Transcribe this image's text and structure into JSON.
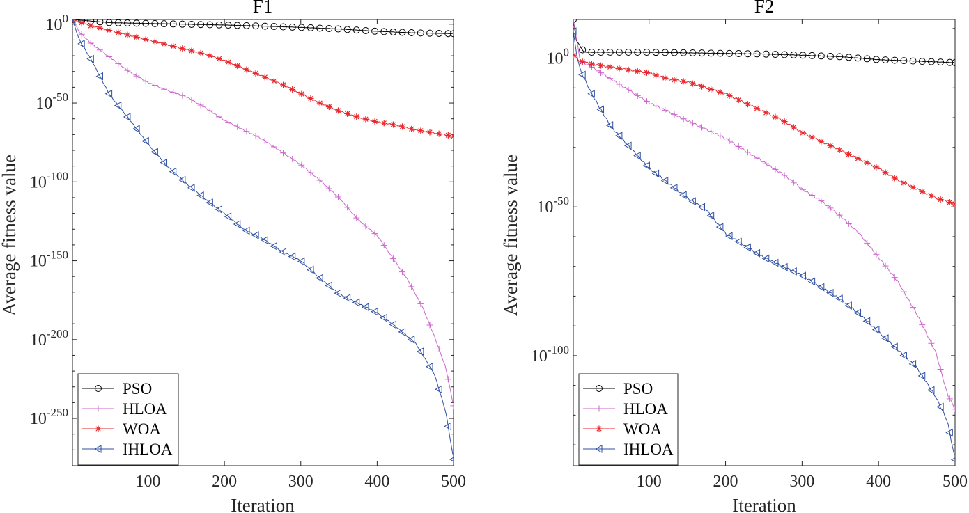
{
  "chart_data": [
    {
      "type": "line",
      "title": "F1",
      "xlabel": "Iteration",
      "ylabel": "Average fitness value",
      "yscale": "log",
      "xlim": [
        1,
        500
      ],
      "ylim_exp": [
        -280,
        3
      ],
      "xticks": [
        100,
        200,
        300,
        400,
        500
      ],
      "yticks": [
        {
          "base": "10",
          "exp": "0",
          "value": 0
        },
        {
          "base": "10",
          "exp": "-50",
          "value": -50
        },
        {
          "base": "10",
          "exp": "-100",
          "value": -100
        },
        {
          "base": "10",
          "exp": "-150",
          "value": -150
        },
        {
          "base": "10",
          "exp": "-200",
          "value": -200
        },
        {
          "base": "10",
          "exp": "-250",
          "value": -250
        }
      ],
      "legend_position": "bottom-left",
      "series": [
        {
          "name": "PSO",
          "color": "#000000",
          "marker": "circle",
          "x": [
            1,
            50,
            100,
            150,
            200,
            250,
            300,
            350,
            400,
            450,
            500
          ],
          "log10_y": [
            3,
            1,
            0.5,
            0,
            -0.5,
            -1.2,
            -2,
            -3,
            -4.5,
            -5.5,
            -6
          ]
        },
        {
          "name": "HLOA",
          "color": "#cc66cc",
          "marker": "plus",
          "x": [
            1,
            10,
            25,
            50,
            75,
            100,
            125,
            150,
            175,
            200,
            225,
            250,
            275,
            300,
            325,
            350,
            375,
            400,
            420,
            440,
            460,
            475,
            490,
            500
          ],
          "log10_y": [
            3,
            -5,
            -12,
            -21,
            -30,
            -37,
            -42,
            -46,
            -53,
            -61,
            -67,
            -73,
            -81,
            -89,
            -99,
            -110,
            -124,
            -134,
            -148,
            -162,
            -180,
            -198,
            -218,
            -242
          ]
        },
        {
          "name": "WOA",
          "color": "#e8262b",
          "marker": "asterisk",
          "x": [
            1,
            25,
            50,
            75,
            100,
            125,
            150,
            175,
            200,
            225,
            250,
            275,
            300,
            325,
            350,
            375,
            400,
            425,
            450,
            475,
            500
          ],
          "log10_y": [
            3,
            -1,
            -4,
            -7,
            -10,
            -13,
            -16,
            -19,
            -23,
            -28,
            -33,
            -38,
            -44,
            -50,
            -55,
            -59,
            -62,
            -64,
            -67,
            -69,
            -71
          ]
        },
        {
          "name": "IHLOA",
          "color": "#2e4fa1",
          "marker": "triangle-left",
          "x": [
            1,
            10,
            25,
            50,
            75,
            100,
            125,
            150,
            175,
            200,
            225,
            250,
            275,
            300,
            325,
            350,
            375,
            400,
            425,
            450,
            475,
            490,
            500
          ],
          "log10_y": [
            3,
            -10,
            -22,
            -45,
            -60,
            -76,
            -90,
            -101,
            -111,
            -120,
            -130,
            -136,
            -144,
            -150,
            -161,
            -171,
            -177,
            -183,
            -192,
            -202,
            -222,
            -246,
            -276
          ]
        }
      ]
    },
    {
      "type": "line",
      "title": "F2",
      "xlabel": "Iteration",
      "ylabel": "Average fitness value",
      "yscale": "log",
      "xlim": [
        1,
        500
      ],
      "ylim_exp": [
        -137,
        13
      ],
      "xticks": [
        100,
        200,
        300,
        400,
        500
      ],
      "yticks": [
        {
          "base": "10",
          "exp": "0",
          "value": 0
        },
        {
          "base": "10",
          "exp": "-50",
          "value": -50
        },
        {
          "base": "10",
          "exp": "-100",
          "value": -100
        }
      ],
      "legend_position": "bottom-left",
      "series": [
        {
          "name": "PSO",
          "color": "#000000",
          "marker": "circle",
          "x": [
            1,
            5,
            15,
            50,
            100,
            150,
            200,
            250,
            300,
            350,
            400,
            450,
            500
          ],
          "log10_y": [
            13,
            6,
            2,
            2,
            2,
            1.8,
            1.6,
            1.4,
            1,
            0.5,
            -0.5,
            -1,
            -1.5
          ]
        },
        {
          "name": "HLOA",
          "color": "#cc66cc",
          "marker": "plus",
          "x": [
            1,
            10,
            25,
            50,
            75,
            100,
            125,
            150,
            175,
            200,
            225,
            250,
            275,
            300,
            325,
            350,
            375,
            400,
            425,
            450,
            475,
            490,
            500
          ],
          "log10_y": [
            13,
            -1,
            -3,
            -7,
            -11,
            -15,
            -18,
            -21,
            -24,
            -27,
            -31,
            -35,
            -39,
            -44,
            -48,
            -53,
            -59,
            -67,
            -75,
            -86,
            -99,
            -113,
            -118
          ]
        },
        {
          "name": "WOA",
          "color": "#e8262b",
          "marker": "asterisk",
          "x": [
            1,
            5,
            10,
            25,
            50,
            75,
            100,
            125,
            150,
            175,
            200,
            225,
            250,
            275,
            300,
            325,
            350,
            375,
            400,
            425,
            450,
            475,
            500
          ],
          "log10_y": [
            1,
            0,
            -1,
            -2,
            -3,
            -4,
            -5,
            -7,
            -8,
            -10,
            -12,
            -15,
            -18,
            -21,
            -25,
            -28,
            -31,
            -34,
            -37,
            -41,
            -44,
            -47,
            -49
          ]
        },
        {
          "name": "IHLOA",
          "color": "#2e4fa1",
          "marker": "triangle-left",
          "x": [
            1,
            5,
            10,
            25,
            50,
            75,
            100,
            125,
            150,
            175,
            200,
            225,
            250,
            275,
            300,
            325,
            350,
            375,
            400,
            425,
            450,
            475,
            490,
            500
          ],
          "log10_y": [
            9,
            2,
            -4,
            -12,
            -23,
            -30,
            -37,
            -42,
            -47,
            -51,
            -59,
            -63,
            -67,
            -70,
            -73,
            -77,
            -81,
            -86,
            -92,
            -98,
            -104,
            -114,
            -122,
            -135
          ]
        }
      ]
    }
  ]
}
